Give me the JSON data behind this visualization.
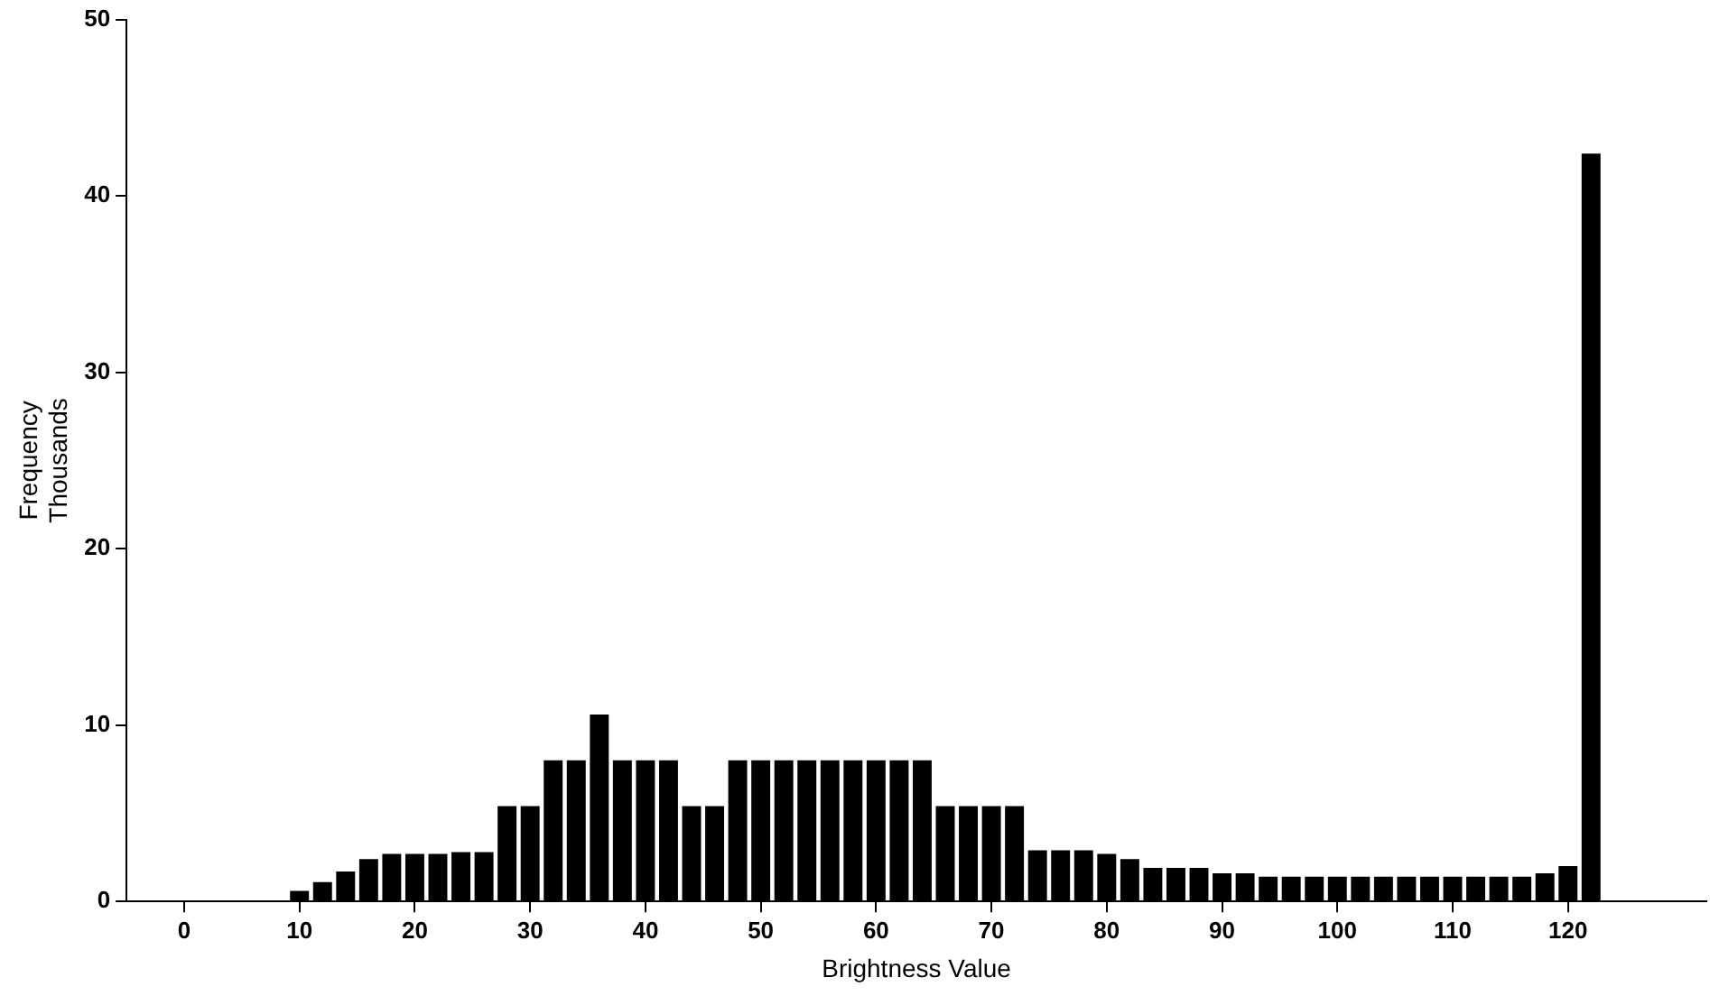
{
  "chart_data": {
    "type": "histogram",
    "xlabel": "Brightness Value",
    "ylabel": "Frequency\nThousands",
    "bins": [
      9,
      11,
      13,
      15,
      17,
      19,
      21,
      23,
      25,
      27,
      29,
      31,
      33,
      35,
      37,
      39,
      41,
      43,
      45,
      47,
      49,
      51,
      53,
      55,
      57,
      59,
      61,
      63,
      65,
      67,
      69,
      71,
      73,
      75,
      77,
      79,
      81,
      83,
      85,
      87,
      89,
      91,
      93,
      95,
      97,
      99,
      101,
      103,
      105,
      107,
      109,
      111,
      113,
      115,
      117,
      119,
      121,
      123
    ],
    "values": [
      0.6,
      1.1,
      1.7,
      2.4,
      2.7,
      2.7,
      2.7,
      2.8,
      2.8,
      5.4,
      5.4,
      8.0,
      8.0,
      10.6,
      8.0,
      8.0,
      8.0,
      5.4,
      5.4,
      8.0,
      8.0,
      8.0,
      8.0,
      8.0,
      8.0,
      8.0,
      8.0,
      8.0,
      5.4,
      5.4,
      5.4,
      5.4,
      2.9,
      2.9,
      2.9,
      2.7,
      2.4,
      1.9,
      1.9,
      1.9,
      1.6,
      1.6,
      1.4,
      1.4,
      1.4,
      1.4,
      1.4,
      1.4,
      1.4,
      1.4,
      1.4,
      1.4,
      1.4,
      1.4,
      1.6,
      2.0,
      42.4
    ],
    "color": "#000000",
    "xlim": [
      -5,
      132
    ],
    "xticks": [
      0,
      10,
      20,
      30,
      40,
      50,
      60,
      70,
      80,
      90,
      100,
      110,
      120
    ],
    "ylim": [
      0,
      50
    ],
    "yticks": [
      0,
      10,
      20,
      30,
      40,
      50
    ],
    "grid": false,
    "legend": false
  }
}
